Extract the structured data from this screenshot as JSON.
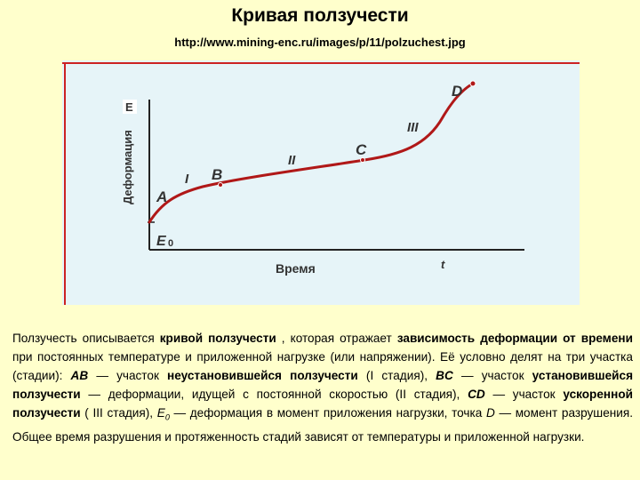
{
  "title": "Кривая ползучести",
  "url": "http://www.mining-enc.ru/images/p/11/polzuchest.jpg",
  "figure": {
    "y_axis_label": "Деформация",
    "y_axis_letter": "E",
    "x_axis_label": "Время",
    "x_axis_letter": "t",
    "e0_label": "E",
    "e0_sub": "0",
    "points": {
      "A": "A",
      "B": "B",
      "C": "C",
      "D": "D"
    },
    "stages": {
      "I": "I",
      "II": "II",
      "III": "III"
    },
    "colors": {
      "curve": "#b01818",
      "frame": "#cc2222",
      "axes": "#222222",
      "background": "#e6f4f8"
    }
  },
  "description": {
    "p1": "Ползучесть описывается ",
    "p2": "кривой ползучести",
    "p3": " , которая отражает ",
    "p4": "зависимость деформации от времени",
    "p5": " при постоянных температуре и приложенной нагрузке (или напряжении). Её условно делят на три участка (стадии): ",
    "p6": "AB",
    "p7": " — участок ",
    "p8": "неустановившейся ползучести",
    "p9": " (I стадия), ",
    "p10": "BC",
    "p11": " — участок ",
    "p12": "установившейся ползучести",
    "p13": " — деформации, идущей с постоянной скоростью (II стадия), ",
    "p14": "CD",
    "p15": " — участок ",
    "p16": "ускоренной ползучести",
    "p17": " ( III стадия), ",
    "p18": "E",
    "p18sub": "0",
    "p19": " — деформация в момент приложения нагрузки, точка ",
    "p20": "D",
    "p21": " — момент разрушения. Общее время разрушения и протяженность стадий зависят от температуры и приложенной нагрузки."
  }
}
